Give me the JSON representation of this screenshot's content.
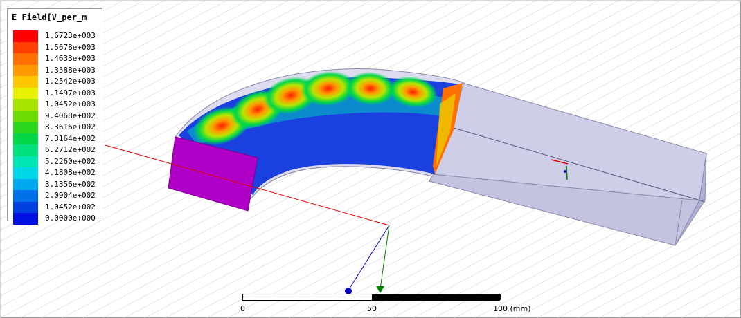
{
  "legend": {
    "title": "E Field[V_per_m",
    "entries": [
      {
        "value": "1.6723e+003",
        "color": "#ff0000"
      },
      {
        "value": "1.5678e+003",
        "color": "#ff4000"
      },
      {
        "value": "1.4633e+003",
        "color": "#ff7000"
      },
      {
        "value": "1.3588e+003",
        "color": "#ff9a00"
      },
      {
        "value": "1.2542e+003",
        "color": "#ffc800"
      },
      {
        "value": "1.1497e+003",
        "color": "#e6f000"
      },
      {
        "value": "1.0452e+003",
        "color": "#a8e600"
      },
      {
        "value": "9.4068e+002",
        "color": "#6cdc00"
      },
      {
        "value": "8.3616e+002",
        "color": "#2cd61c"
      },
      {
        "value": "7.3164e+002",
        "color": "#00d648"
      },
      {
        "value": "6.2712e+002",
        "color": "#00e07c"
      },
      {
        "value": "5.2260e+002",
        "color": "#00e6b4"
      },
      {
        "value": "4.1808e+002",
        "color": "#00d8e8"
      },
      {
        "value": "3.1356e+002",
        "color": "#00a8f0"
      },
      {
        "value": "2.0904e+002",
        "color": "#0070e8"
      },
      {
        "value": "1.0452e+002",
        "color": "#0040e0"
      },
      {
        "value": "0.0000e+000",
        "color": "#0010e0"
      }
    ]
  },
  "scale_bar": {
    "label_start": "0",
    "label_mid": "50",
    "label_end": "100 (mm)"
  },
  "colors": {
    "port_face": "#b000c8",
    "waveguide_body": "#c8c8e6",
    "coord_x_axis": "#e00000",
    "coord_y_axis": "#008000",
    "coord_z_axis": "#0000c0"
  }
}
